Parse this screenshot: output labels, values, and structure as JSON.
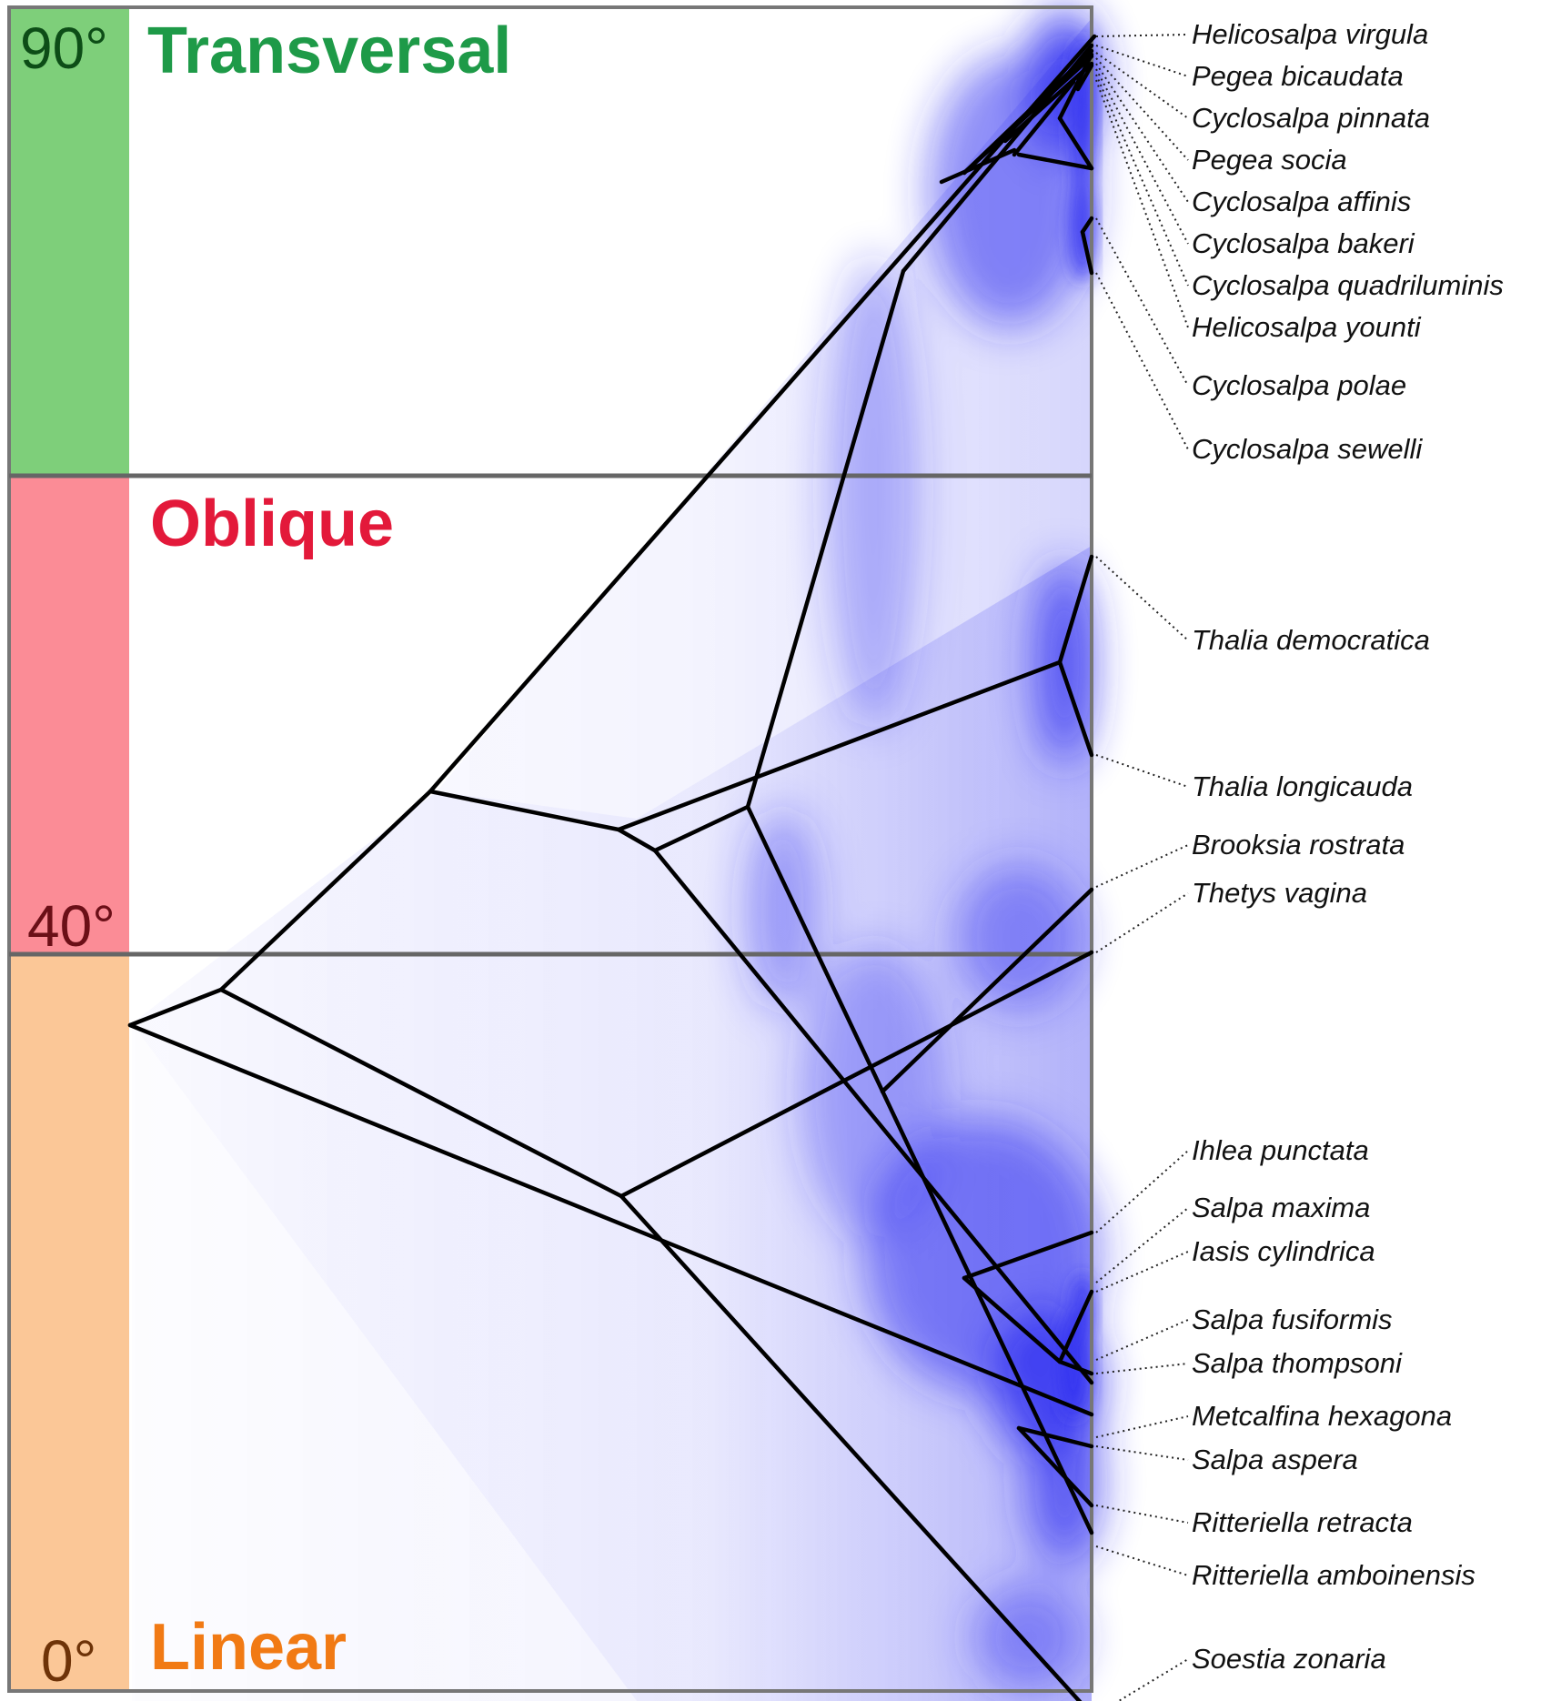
{
  "regions": [
    {
      "id": "transversal",
      "label": "Transversal",
      "degree": "90°",
      "color": "#7ecf7a",
      "label_color": "#1e9a48",
      "degree_color": "#0d4d17"
    },
    {
      "id": "oblique",
      "label": "Oblique",
      "degree": "40°",
      "color": "#fb8c96",
      "label_color": "#e3193a",
      "degree_color": "#6b0f17"
    },
    {
      "id": "linear",
      "label": "Linear",
      "degree": "0°",
      "color": "#fbc797",
      "label_color": "#f17a14",
      "degree_color": "#6e3308"
    }
  ],
  "taxa": [
    "Helicosalpa virgula",
    "Pegea bicaudata",
    "Cyclosalpa pinnata",
    "Pegea socia",
    "Cyclosalpa affinis",
    "Cyclosalpa bakeri",
    "Cyclosalpa quadriluminis",
    "Helicosalpa younti",
    "Cyclosalpa polae",
    "Cyclosalpa sewelli",
    "Thalia democratica",
    "Thalia longicauda",
    "Brooksia rostrata",
    "Thetys vagina",
    "Ihlea punctata",
    "Salpa maxima",
    "Iasis cylindrica",
    "Salpa fusiformis",
    "Salpa thompsoni",
    "Metcalfina hexagona",
    "Salpa aspera",
    "Ritteriella retracta",
    "Ritteriella amboinensis",
    "Soestia zonaria"
  ],
  "colors": {
    "tree": "#000000",
    "posterior_cloud": "#2a2af0",
    "frame": "#777777"
  }
}
